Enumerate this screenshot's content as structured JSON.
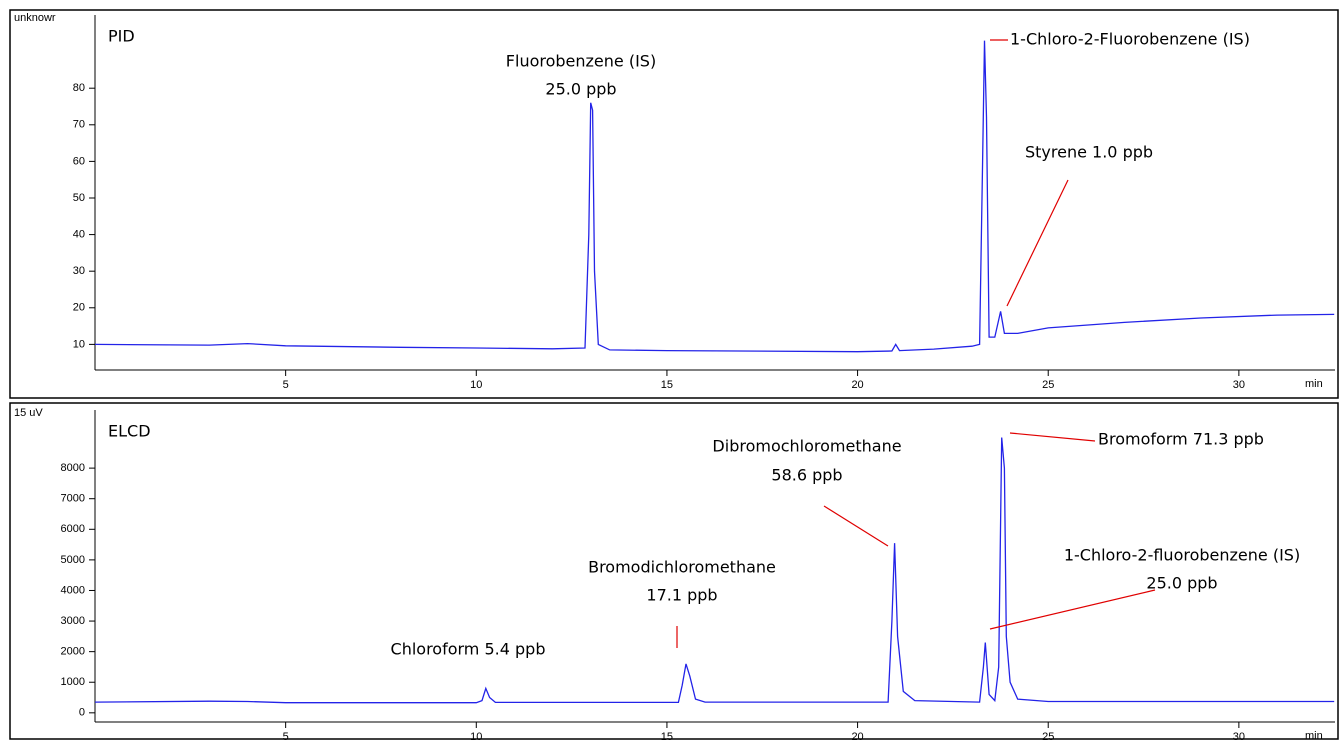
{
  "chart_data": [
    {
      "type": "line",
      "panel_label": "PID",
      "y_unit_label": "unknowr",
      "x_unit_label": "min",
      "x": [
        0,
        3,
        4,
        5,
        8,
        10,
        12,
        12.85,
        12.95,
        13.0,
        13.05,
        13.1,
        13.2,
        13.5,
        15,
        20,
        20.9,
        21.0,
        21.1,
        22,
        23,
        23.2,
        23.28,
        23.33,
        23.38,
        23.45,
        23.6,
        23.75,
        23.85,
        24.2,
        25,
        27,
        29,
        31,
        32.5
      ],
      "series": [
        {
          "color": "#2323e8",
          "values": [
            10,
            9.8,
            10.2,
            9.6,
            9.2,
            9,
            8.8,
            9,
            40,
            76,
            74,
            30,
            10,
            8.5,
            8.3,
            8.0,
            8.2,
            10,
            8.3,
            8.7,
            9.5,
            10,
            60,
            93,
            72,
            12,
            12,
            19,
            13,
            13,
            14.5,
            16,
            17.2,
            18,
            18.2
          ]
        }
      ],
      "xlim": [
        0,
        32.6
      ],
      "ylim": [
        3,
        100
      ],
      "xticks": [
        5,
        10,
        15,
        20,
        25,
        30
      ],
      "yticks": [
        10,
        20,
        30,
        40,
        50,
        60,
        70,
        80
      ],
      "annotations": [
        [
          "Fluorobenzene (IS)",
          "25.0 ppb"
        ],
        [
          "1-Chloro-2-Fluorobenzene (IS)"
        ],
        [
          "Styrene 1.0 ppb"
        ]
      ]
    },
    {
      "type": "line",
      "panel_label": "ELCD",
      "y_unit_label": "15 uV",
      "x_unit_label": "min",
      "x": [
        0,
        3,
        4,
        5,
        10,
        10.15,
        10.25,
        10.35,
        10.5,
        15.3,
        15.4,
        15.5,
        15.6,
        15.75,
        16,
        20.8,
        20.9,
        20.97,
        21.05,
        21.2,
        21.5,
        23.2,
        23.3,
        23.35,
        23.45,
        23.6,
        23.7,
        23.78,
        23.85,
        23.9,
        24.0,
        24.2,
        25,
        32.5
      ],
      "series": [
        {
          "color": "#2323e8",
          "values": [
            350,
            380,
            370,
            330,
            330,
            400,
            800,
            500,
            340,
            340,
            900,
            1600,
            1200,
            450,
            350,
            350,
            3000,
            5550,
            2500,
            700,
            400,
            350,
            1500,
            2300,
            600,
            400,
            1500,
            9000,
            8000,
            2500,
            1000,
            450,
            370,
            370
          ]
        }
      ],
      "xlim": [
        0,
        32.6
      ],
      "ylim": [
        -300,
        9900
      ],
      "xticks": [
        5,
        10,
        15,
        20,
        25,
        30
      ],
      "yticks": [
        0,
        1000,
        2000,
        3000,
        4000,
        5000,
        6000,
        7000,
        8000
      ],
      "annotations": [
        [
          "Chloroform 5.4 ppb"
        ],
        [
          "Bromodichloromethane",
          "17.1 ppb"
        ],
        [
          "Dibromochloromethane",
          "58.6 ppb"
        ],
        [
          "Bromoform 71.3 ppb"
        ],
        [
          "1-Chloro-2-fluorobenzene (IS)",
          "25.0 ppb"
        ]
      ]
    }
  ]
}
